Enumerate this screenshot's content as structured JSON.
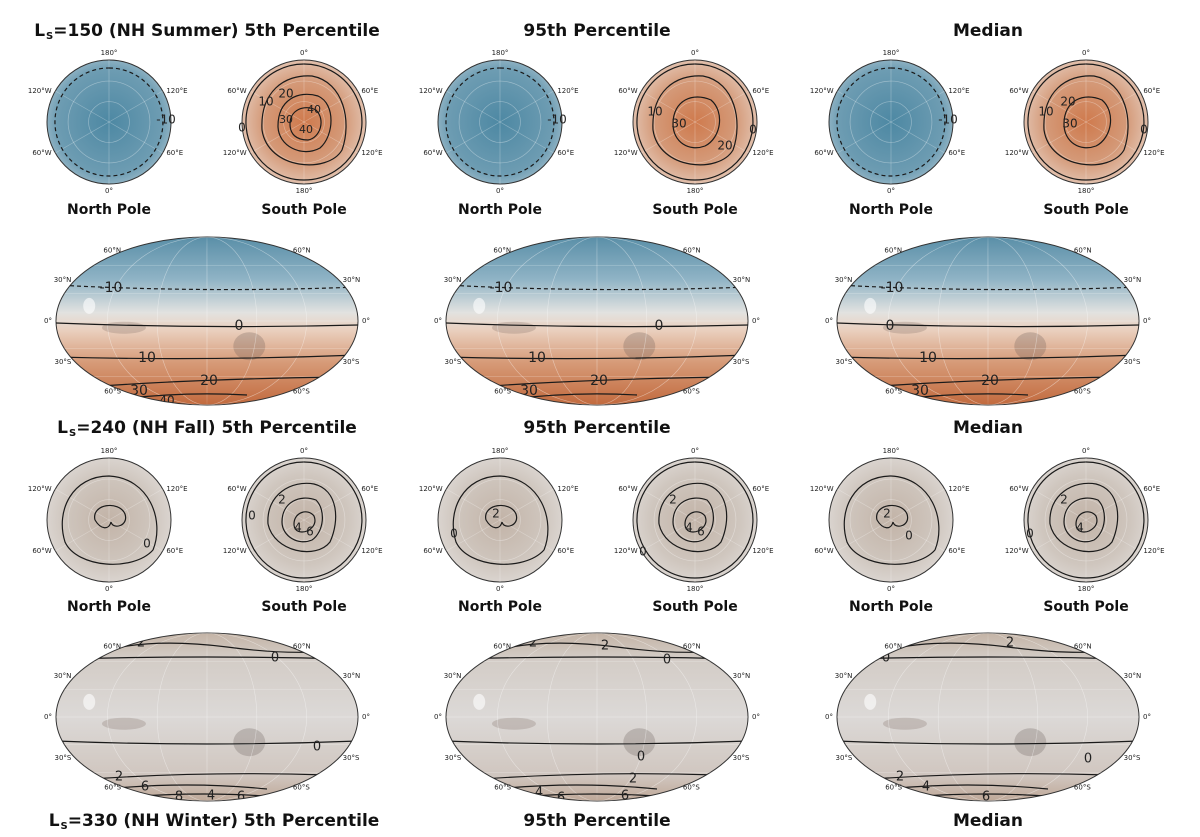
{
  "sections": [
    {
      "titles": [
        {
          "pre": "L",
          "sub": "S",
          "post": "=150 (NH Summer) 5th Percentile"
        },
        {
          "pre": "",
          "sub": "",
          "post": "95th Percentile"
        },
        {
          "pre": "",
          "sub": "",
          "post": "Median"
        }
      ],
      "pole_labels": [
        "North Pole",
        "South Pole"
      ],
      "north_lon_ticks": [
        "180°",
        "120°E",
        "60°E",
        "0°",
        "60°W",
        "120°W"
      ],
      "south_lon_ticks": [
        "0°",
        "60°E",
        "120°E",
        "180°",
        "120°W",
        "60°W"
      ],
      "lat_ticks": [
        "60°N",
        "30°N",
        "0°",
        "30°S",
        "60°S"
      ],
      "north_contours": [
        [
          "-10"
        ],
        [
          "-10"
        ],
        [
          "-10"
        ]
      ],
      "south_contours": [
        [
          "0",
          "10",
          "20",
          "30",
          "40",
          "40"
        ],
        [
          "0",
          "10",
          "20",
          "30"
        ],
        [
          "0",
          "10",
          "20",
          "30"
        ]
      ],
      "map_contours": [
        [
          "-10",
          "0",
          "10",
          "20",
          "30",
          "40"
        ],
        [
          "-10",
          "0",
          "10",
          "20",
          "30"
        ],
        [
          "-10",
          "0",
          "10",
          "20",
          "30"
        ]
      ]
    },
    {
      "titles": [
        {
          "pre": "L",
          "sub": "S",
          "post": "=240 (NH Fall) 5th Percentile"
        },
        {
          "pre": "",
          "sub": "",
          "post": "95th Percentile"
        },
        {
          "pre": "",
          "sub": "",
          "post": "Median"
        }
      ],
      "pole_labels": [
        "North Pole",
        "South Pole"
      ],
      "north_contours": [
        [
          "0"
        ],
        [
          "0",
          "2"
        ],
        [
          "0",
          "2"
        ]
      ],
      "south_contours": [
        [
          "0",
          "2",
          "4",
          "6"
        ],
        [
          "0",
          "2",
          "4",
          "6"
        ],
        [
          "0",
          "2",
          "4"
        ]
      ],
      "map_contours": [
        [
          "2",
          "0",
          "0",
          "2",
          "6",
          "8",
          "4",
          "6"
        ],
        [
          "2",
          "2",
          "0",
          "0",
          "2",
          "4",
          "6",
          "6"
        ],
        [
          "2",
          "0",
          "0",
          "2",
          "4",
          "6"
        ]
      ]
    },
    {
      "titles": [
        {
          "pre": "L",
          "sub": "S",
          "post": "=330 (NH Winter) 5th Percentile"
        },
        {
          "pre": "",
          "sub": "",
          "post": "95th Percentile"
        },
        {
          "pre": "",
          "sub": "",
          "post": "Median"
        }
      ]
    }
  ],
  "colors": {
    "warm": "#c98661",
    "cold": "#5f93ab",
    "neutral": "#bdb7b1",
    "contour": "#1a1a1a"
  }
}
